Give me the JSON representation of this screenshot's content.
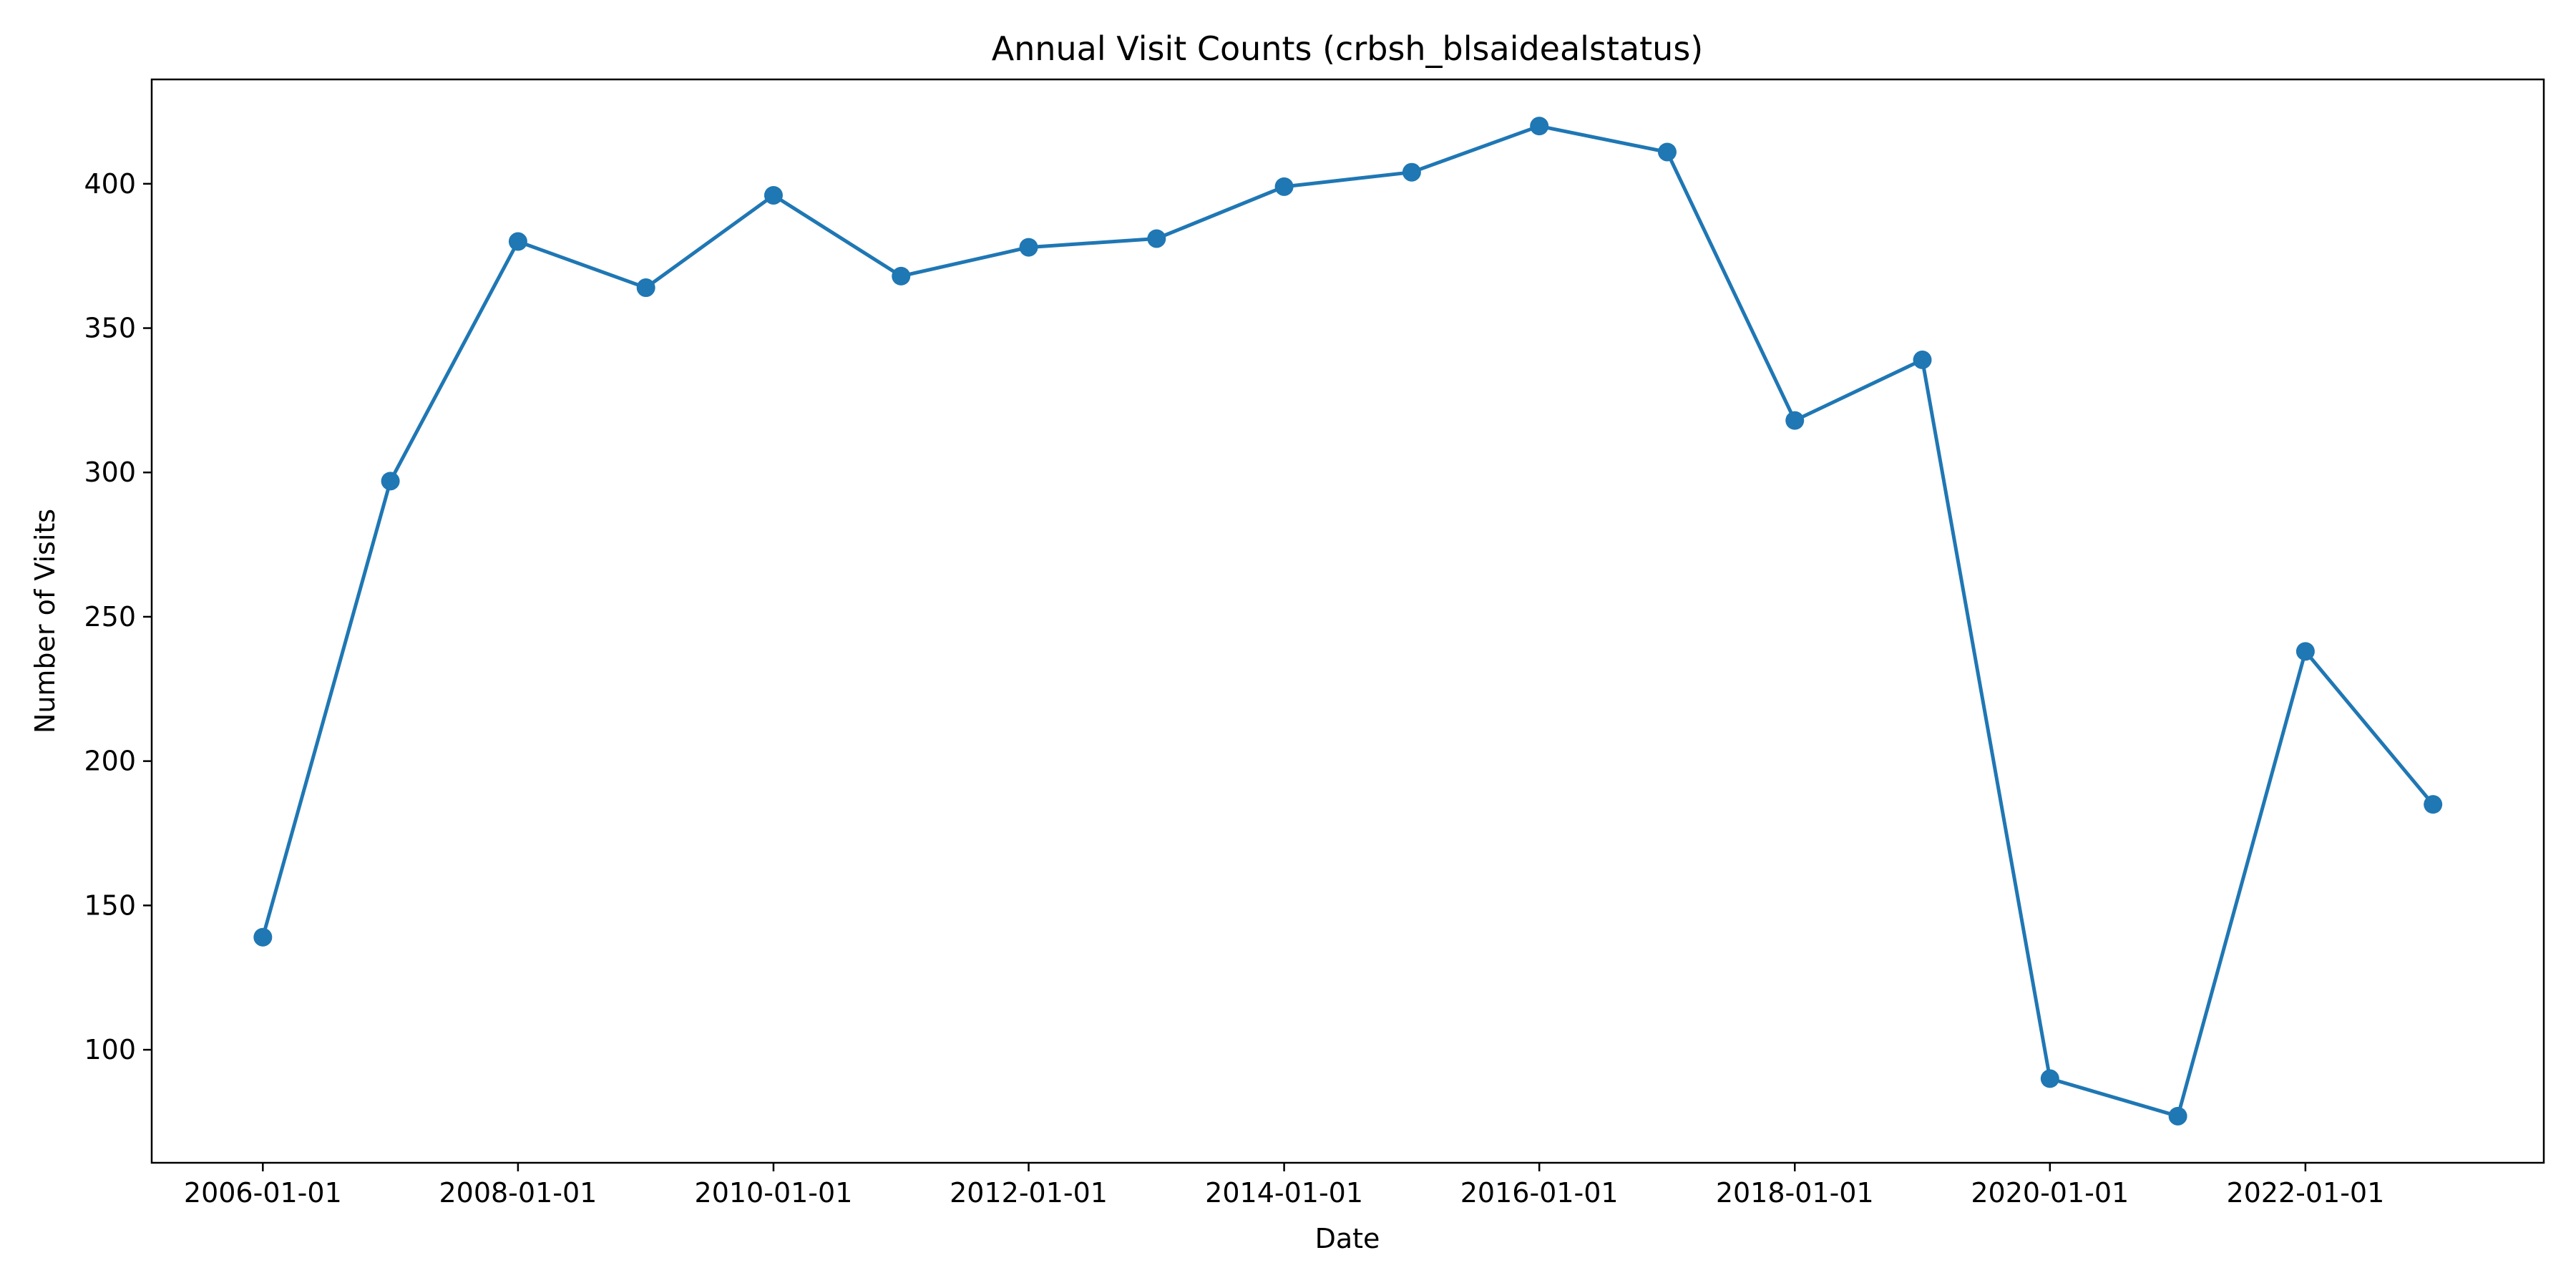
{
  "chart_data": {
    "type": "line",
    "title": "Annual Visit Counts (crbsh_blsaidealstatus)",
    "xlabel": "Date",
    "ylabel": "Number of Visits",
    "x": [
      "2006-01-01",
      "2007-01-01",
      "2008-01-01",
      "2009-01-01",
      "2010-01-01",
      "2011-01-01",
      "2012-01-01",
      "2013-01-01",
      "2014-01-01",
      "2015-01-01",
      "2016-01-01",
      "2017-01-01",
      "2018-01-01",
      "2019-01-01",
      "2020-01-01",
      "2021-01-01",
      "2022-01-01",
      "2023-01-01"
    ],
    "series": [
      {
        "values": [
          139,
          297,
          380,
          364,
          396,
          368,
          378,
          381,
          399,
          404,
          420,
          411,
          318,
          339,
          90,
          77,
          238,
          185
        ],
        "color": "#1f77b4",
        "marker": "circle"
      }
    ],
    "xticks": [
      "2006-01-01",
      "2008-01-01",
      "2010-01-01",
      "2012-01-01",
      "2014-01-01",
      "2016-01-01",
      "2018-01-01",
      "2020-01-01",
      "2022-01-01"
    ],
    "yticks": [
      100,
      150,
      200,
      250,
      300,
      350,
      400
    ],
    "xlim": [
      "2005-02-17",
      "2023-11-14"
    ],
    "ylim": [
      60.85,
      436.15
    ],
    "grid": false,
    "legend": "none"
  }
}
